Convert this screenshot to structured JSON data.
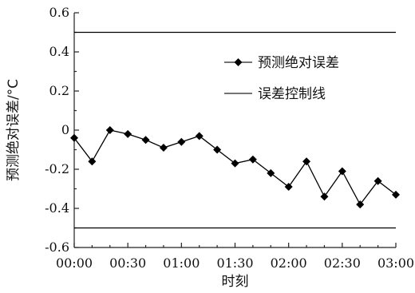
{
  "chart_data": {
    "type": "line",
    "xlabel": "时刻",
    "ylabel": "预测绝对误差/°C",
    "ylim": [
      -0.6,
      0.6
    ],
    "yticks": [
      0.6,
      0.4,
      0.2,
      0,
      -0.2,
      -0.4,
      -0.6
    ],
    "ytick_labels": [
      "0.6",
      "0.4",
      "0.2",
      "0",
      "-0.2",
      "-0.4",
      "-0.6"
    ],
    "xlim": [
      "00:00",
      "03:00"
    ],
    "xticks": [
      "00:00",
      "00:30",
      "01:00",
      "01:30",
      "02:00",
      "02:30",
      "03:00"
    ],
    "legend_position": "upper-right",
    "grid": false,
    "series": [
      {
        "name": "预测绝对误差",
        "marker": "diamond",
        "color": "#000000",
        "x": [
          "00:00",
          "00:10",
          "00:20",
          "00:30",
          "00:40",
          "00:50",
          "01:00",
          "01:10",
          "01:20",
          "01:30",
          "01:40",
          "01:50",
          "02:00",
          "02:10",
          "02:20",
          "02:30",
          "02:40",
          "02:50",
          "03:00"
        ],
        "values": [
          -0.04,
          -0.16,
          0.0,
          -0.02,
          -0.05,
          -0.09,
          -0.06,
          -0.03,
          -0.1,
          -0.17,
          -0.15,
          -0.22,
          -0.29,
          -0.16,
          -0.34,
          -0.21,
          -0.38,
          -0.26,
          -0.33
        ]
      },
      {
        "name": "误差控制线",
        "style": "line",
        "color": "#000000",
        "hlines": [
          0.5,
          -0.5
        ]
      }
    ]
  }
}
